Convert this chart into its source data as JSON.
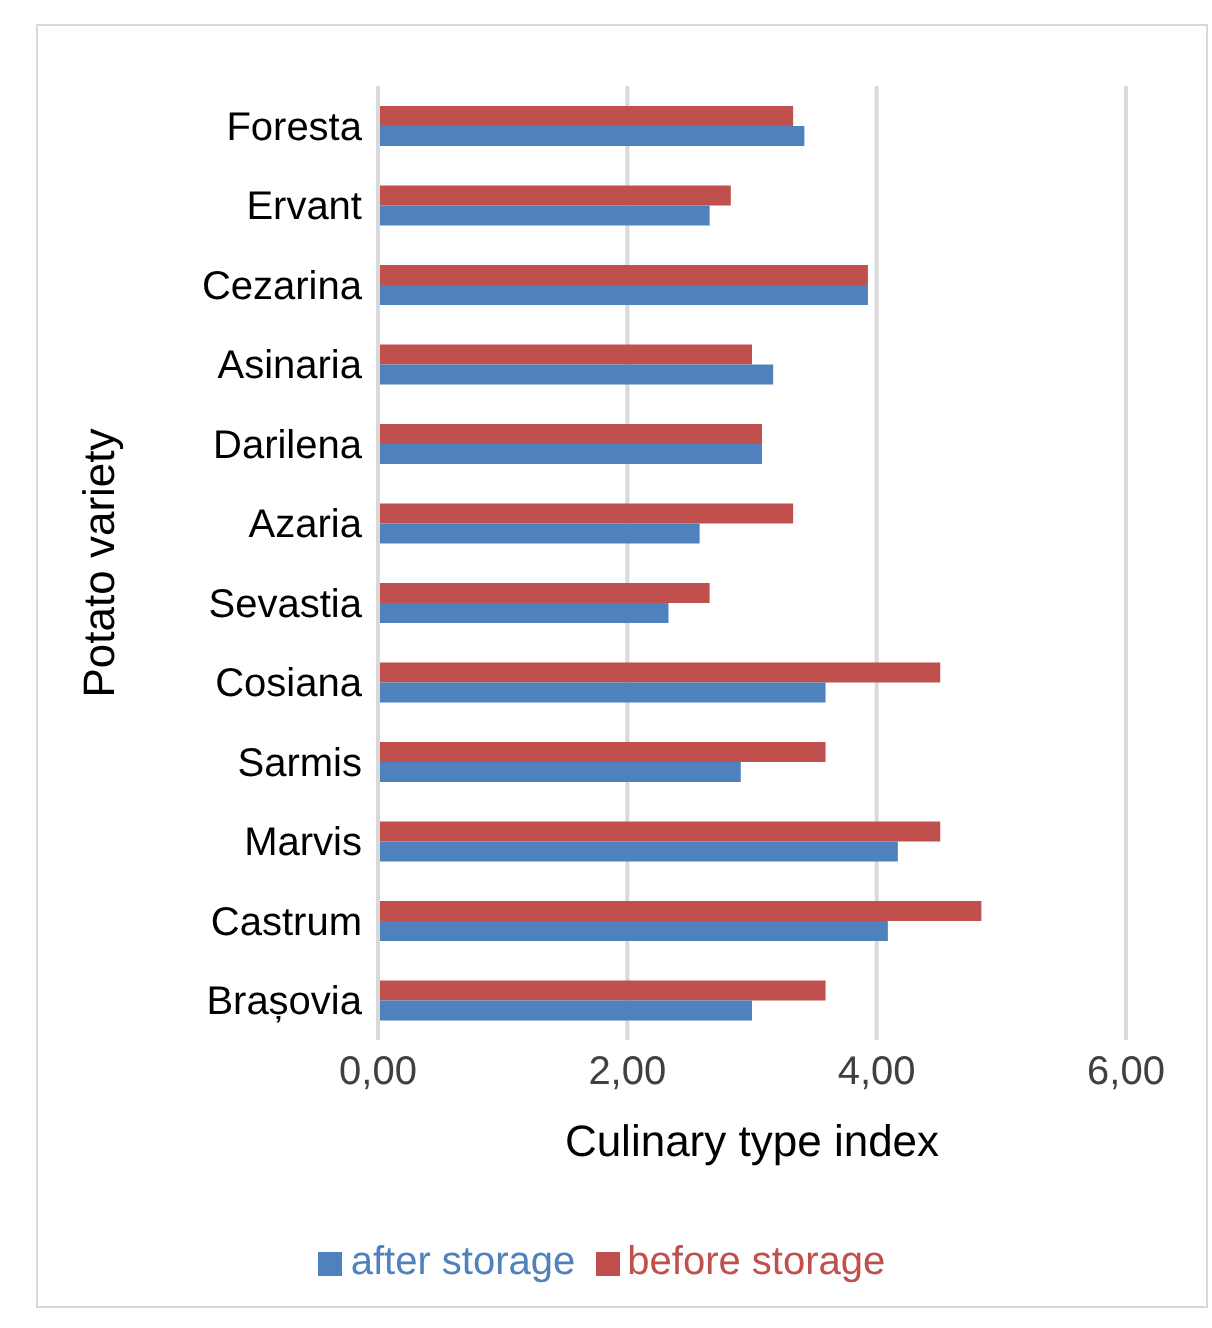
{
  "chart_data": {
    "type": "bar",
    "orientation": "horizontal",
    "xlabel": "Culinary type index",
    "ylabel": "Potato variety",
    "categories": [
      "Foresta",
      "Ervant",
      "Cezarina",
      "Asinaria",
      "Darilena",
      "Azaria",
      "Sevastia",
      "Cosiana",
      "Sarmis",
      "Marvis",
      "Castrum",
      "Brașovia"
    ],
    "series": [
      {
        "name": "before storage",
        "color": "#c0504d",
        "values": [
          3.33,
          2.83,
          3.93,
          3.0,
          3.08,
          3.33,
          2.66,
          4.51,
          3.59,
          4.51,
          4.84,
          3.59
        ]
      },
      {
        "name": "after storage",
        "color": "#4f81bd",
        "values": [
          3.42,
          2.66,
          3.93,
          3.17,
          3.08,
          2.58,
          2.33,
          3.59,
          2.91,
          4.17,
          4.09,
          3.0
        ]
      }
    ],
    "xlim": [
      0,
      6
    ],
    "xticks": [
      {
        "value": 0,
        "label": "0,00"
      },
      {
        "value": 2,
        "label": "2,00"
      },
      {
        "value": 4,
        "label": "4,00"
      },
      {
        "value": 6,
        "label": "6,00"
      }
    ],
    "grid": "x",
    "legend": "bottom"
  }
}
